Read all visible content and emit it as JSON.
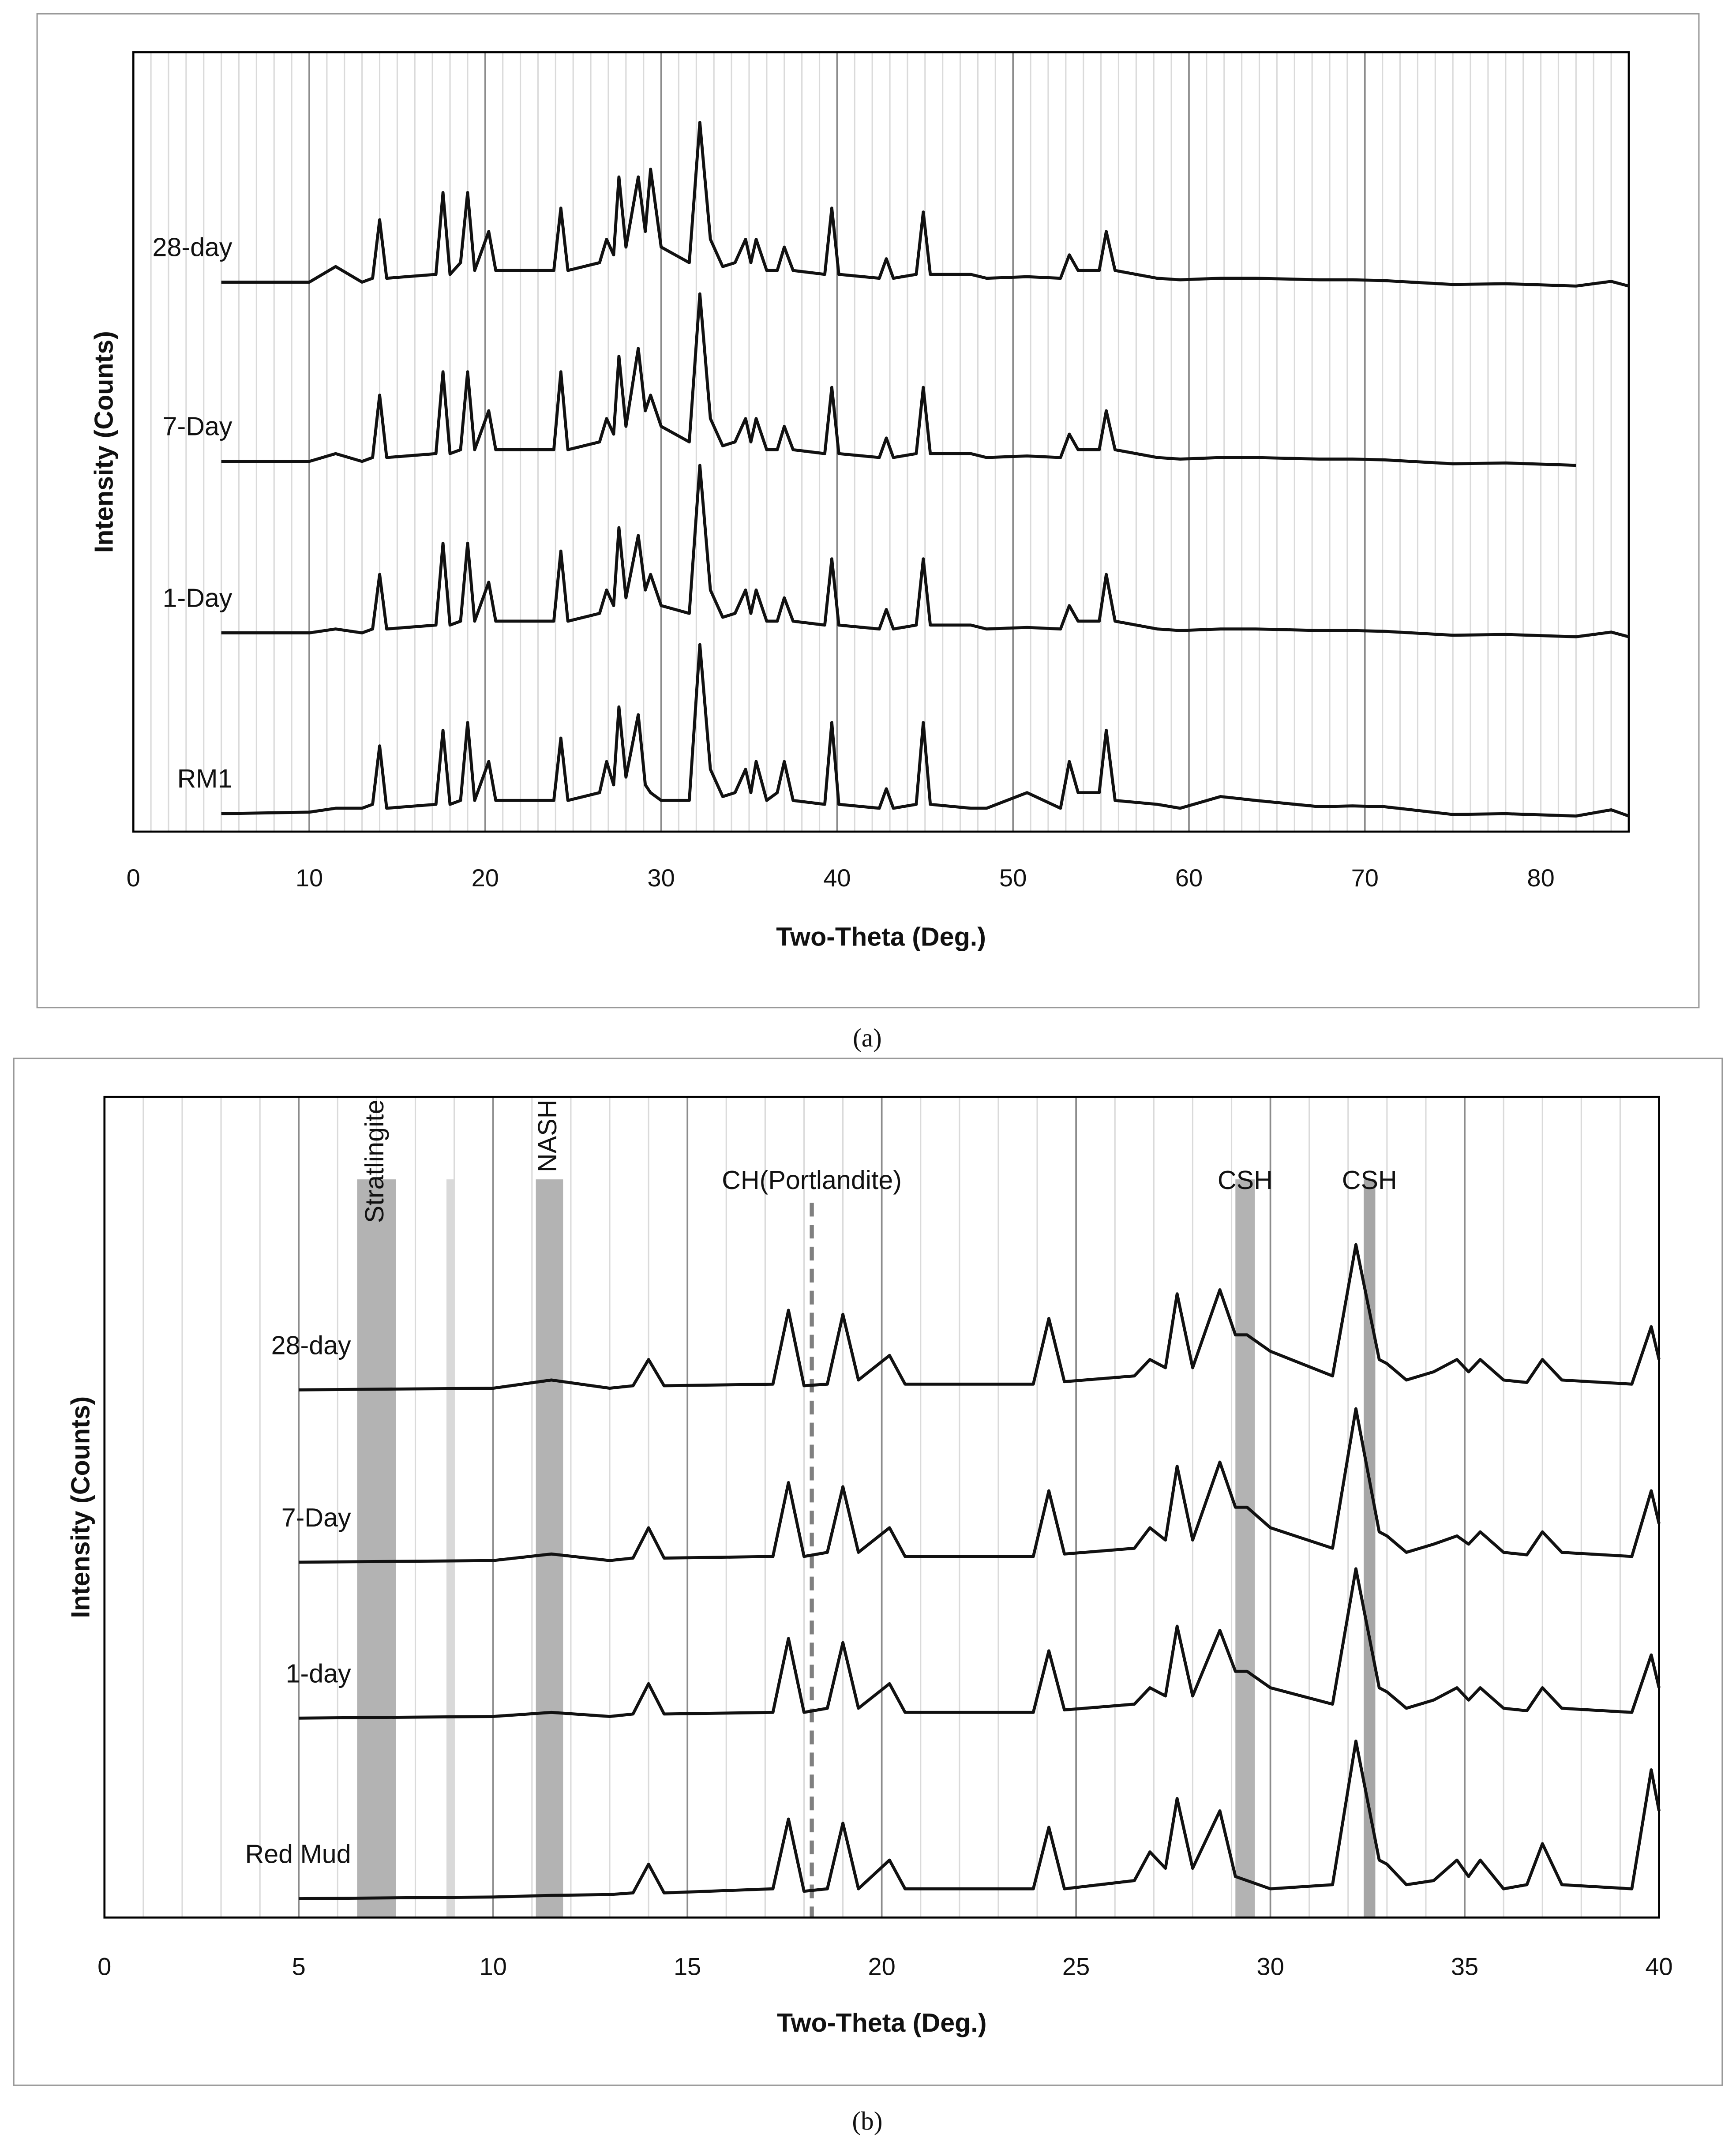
{
  "chart_data": [
    {
      "type": "line",
      "caption": "(a)",
      "x_label": "Two-Theta (Deg.)",
      "y_label": "Intensity (Counts)",
      "xlim": [
        0,
        85
      ],
      "xticks": [
        0,
        10,
        20,
        30,
        40,
        50,
        60,
        70,
        80
      ],
      "ylim": [
        0,
        100
      ],
      "grid": true,
      "minor_grid_step": 1,
      "color": "#111111",
      "x": [
        5,
        10,
        11.5,
        13,
        13.6,
        14.0,
        14.4,
        17.2,
        17.6,
        18.0,
        18.6,
        19.0,
        19.4,
        20.2,
        20.6,
        23.9,
        24.3,
        24.7,
        26.5,
        26.9,
        27.3,
        27.6,
        28.0,
        28.7,
        29.1,
        29.4,
        30.0,
        31.6,
        32.2,
        32.8,
        33.0,
        33.5,
        34.2,
        34.8,
        35.1,
        35.4,
        36.0,
        36.6,
        37.0,
        37.5,
        39.3,
        39.7,
        40.1,
        42.4,
        42.8,
        43.2,
        44.5,
        44.9,
        45.3,
        47.6,
        48.5,
        50.8,
        52.7,
        53.2,
        53.7,
        54.0,
        54.9,
        55.3,
        55.8,
        58.2,
        59.5,
        61.8,
        63.8,
        67.4,
        69.3,
        71.1,
        75,
        78,
        82,
        84,
        85
      ],
      "series": [
        {
          "name": "28-day",
          "values": [
            70.5,
            70.5,
            72.5,
            70.5,
            71,
            78.5,
            71,
            71.5,
            82,
            71.5,
            73,
            82,
            72,
            77,
            72,
            72,
            80,
            72,
            73,
            76,
            74,
            84,
            75,
            84,
            77,
            85,
            75,
            73,
            91,
            76,
            75,
            72.5,
            73,
            76,
            73,
            76,
            72,
            72,
            75,
            72,
            71.5,
            80,
            71.5,
            71,
            73.5,
            71,
            71.5,
            79.5,
            71.5,
            71.5,
            71,
            71.2,
            71,
            74,
            72,
            72,
            72,
            77,
            72,
            71,
            70.8,
            71,
            71,
            70.8,
            70.8,
            70.7,
            70.2,
            70.3,
            70,
            70.6,
            70
          ]
        },
        {
          "name": "7-Day",
          "values": [
            47.5,
            47.5,
            48.5,
            47.5,
            48,
            56,
            48,
            48.5,
            59,
            48.5,
            49,
            59,
            49,
            54,
            49,
            49,
            59,
            49,
            50,
            53,
            51,
            61,
            52,
            62,
            54,
            56,
            52,
            50,
            69,
            53,
            52,
            49.5,
            50,
            53,
            50,
            53,
            49,
            49,
            52,
            49,
            48.5,
            57,
            48.5,
            48,
            50.5,
            48,
            48.5,
            57,
            48.5,
            48.5,
            48,
            48.2,
            48,
            51,
            49,
            49,
            49,
            54,
            49,
            48,
            47.8,
            48,
            48,
            47.8,
            47.8,
            47.7,
            47.2,
            47.3,
            47,
            null,
            null
          ]
        },
        {
          "name": "1-Day",
          "values": [
            25.5,
            25.5,
            26,
            25.5,
            26,
            33,
            26,
            26.5,
            37,
            26.5,
            27,
            37,
            27,
            32,
            27,
            27,
            36,
            27,
            28,
            31,
            29,
            39,
            30,
            38,
            31,
            33,
            29,
            28,
            47,
            31,
            30,
            27.5,
            28,
            31,
            28,
            31,
            27,
            27,
            30,
            27,
            26.5,
            35,
            26.5,
            26,
            28.5,
            26,
            26.5,
            35,
            26.5,
            26.5,
            26,
            26.2,
            26,
            29,
            27,
            27,
            27,
            33,
            27,
            26,
            25.8,
            26,
            26,
            25.8,
            25.8,
            25.7,
            25.2,
            25.3,
            25,
            25.6,
            25
          ]
        },
        {
          "name": "RM1",
          "values": [
            2.3,
            2.5,
            3,
            3,
            3.5,
            11,
            3,
            3.5,
            13,
            3.5,
            4,
            14,
            4,
            9,
            4,
            4,
            12,
            4,
            5,
            9,
            6,
            16,
            7,
            15,
            6,
            5,
            4,
            4,
            24,
            8,
            7,
            4.5,
            5,
            8,
            5,
            9,
            4,
            5,
            9,
            4,
            3.5,
            14,
            3.5,
            3,
            5.5,
            3,
            3.5,
            14,
            3.5,
            3,
            3,
            5,
            3,
            9,
            5,
            5,
            5,
            13,
            4,
            3.5,
            3,
            4.5,
            4,
            3.2,
            3.3,
            3.2,
            2.2,
            2.3,
            2,
            2.8,
            2
          ]
        }
      ]
    },
    {
      "type": "line",
      "caption": "(b)",
      "x_label": "Two-Theta (Deg.)",
      "y_label": "Intensity (Counts)",
      "xlim": [
        0,
        40
      ],
      "xticks": [
        0,
        5,
        10,
        15,
        20,
        25,
        30,
        35,
        40
      ],
      "ylim": [
        0,
        100
      ],
      "grid": true,
      "minor_grid_step": 1,
      "color": "#111111",
      "bands": [
        {
          "xrange": [
            6.5,
            7.5
          ],
          "color": "#b3b3b3",
          "label": "Stratlingite",
          "rotate": true
        },
        {
          "xrange": [
            8.8,
            9.0
          ],
          "color": "#d9d9d9"
        },
        {
          "xrange": [
            11.1,
            11.8
          ],
          "color": "#b3b3b3",
          "label": "NASH",
          "rotate": true
        },
        {
          "xrange": [
            29.1,
            29.6
          ],
          "color": "#b3b3b3",
          "label": "CSH"
        },
        {
          "xrange": [
            32.4,
            32.7
          ],
          "color": "#a6a6a6",
          "label": "CSH"
        }
      ],
      "markers": [
        {
          "x": 18.2,
          "label": "CH(Portlandite)",
          "style": "dashed"
        }
      ],
      "x": [
        5,
        10,
        11.5,
        13,
        13.6,
        14.0,
        14.4,
        17.2,
        17.6,
        18.0,
        18.6,
        19.0,
        19.4,
        20.2,
        20.6,
        23.9,
        24.3,
        24.7,
        26.5,
        26.9,
        27.3,
        27.6,
        28.0,
        28.7,
        29.1,
        29.4,
        30.0,
        31.6,
        32.2,
        32.8,
        33.0,
        33.5,
        34.2,
        34.8,
        35.1,
        35.4,
        36.0,
        36.6,
        37.0,
        37.5,
        39.3,
        39.8,
        40
      ],
      "series": [
        {
          "name": "28-day",
          "values": [
            64.3,
            64.5,
            65.5,
            64.5,
            64.8,
            68,
            64.8,
            65,
            74,
            64.8,
            65,
            73.5,
            65.5,
            68.5,
            65,
            65,
            73,
            65.3,
            66,
            68,
            67,
            76,
            67,
            76.5,
            71,
            71,
            69,
            66,
            82,
            68,
            67.5,
            65.5,
            66.5,
            68,
            66.5,
            68,
            65.5,
            65.2,
            68,
            65.5,
            65,
            72,
            68
          ]
        },
        {
          "name": "7-Day",
          "values": [
            43.3,
            43.5,
            44.3,
            43.5,
            43.8,
            47.5,
            43.8,
            44,
            53,
            44,
            44.5,
            52.5,
            44.5,
            47.5,
            44,
            44,
            52,
            44.3,
            45,
            47.5,
            46,
            55,
            46,
            55.5,
            50,
            50,
            47.5,
            45,
            62,
            47,
            46.5,
            44.5,
            45.5,
            46.5,
            45.5,
            47,
            44.5,
            44.2,
            47,
            44.5,
            44,
            52,
            48
          ]
        },
        {
          "name": "1-day",
          "values": [
            24.3,
            24.5,
            25,
            24.5,
            24.8,
            28.5,
            24.8,
            25,
            34,
            25,
            25.5,
            33.5,
            25.5,
            28.5,
            25,
            25,
            32.5,
            25.3,
            26,
            28,
            27,
            35.5,
            27,
            35,
            30,
            30,
            28,
            26,
            42.5,
            28,
            27.5,
            25.5,
            26.5,
            28,
            26.5,
            28,
            25.5,
            25.2,
            28,
            25.5,
            25,
            32,
            28
          ]
        },
        {
          "name": "Red Mud",
          "values": [
            2.3,
            2.5,
            2.7,
            2.8,
            3,
            6.5,
            3,
            3.5,
            12,
            3.2,
            3.5,
            11.5,
            3.5,
            7,
            3.5,
            3.5,
            11,
            3.5,
            4.5,
            8,
            6,
            14.5,
            6,
            13,
            5,
            4.5,
            3.5,
            4,
            21.5,
            7,
            6.5,
            4,
            4.5,
            7,
            5,
            7,
            3.5,
            4,
            9,
            4,
            3.5,
            18,
            13
          ]
        }
      ]
    }
  ]
}
